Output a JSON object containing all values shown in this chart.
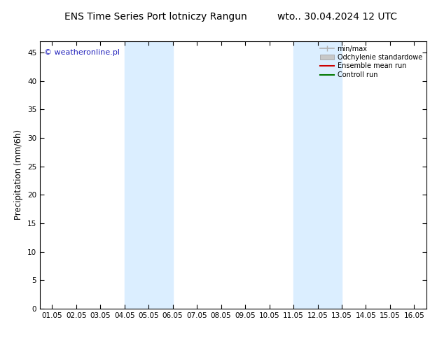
{
  "title": "ENS Time Series Port lotniczy Rangun",
  "title_right": "wto.. 30.04.2024 12 UTC",
  "ylabel": "Precipitation (mm/6h)",
  "watermark": "© weatheronline.pl",
  "x_tick_labels": [
    "01.05",
    "02.05",
    "03.05",
    "04.05",
    "05.05",
    "06.05",
    "07.05",
    "08.05",
    "09.05",
    "10.05",
    "11.05",
    "12.05",
    "13.05",
    "14.05",
    "15.05",
    "16.05"
  ],
  "x_tick_positions": [
    1,
    2,
    3,
    4,
    5,
    6,
    7,
    8,
    9,
    10,
    11,
    12,
    13,
    14,
    15,
    16
  ],
  "xlim": [
    0.5,
    16.5
  ],
  "ylim": [
    0,
    47
  ],
  "yticks": [
    0,
    5,
    10,
    15,
    20,
    25,
    30,
    35,
    40,
    45
  ],
  "shaded_bands": [
    {
      "xmin": 4.0,
      "xmax": 6.0,
      "color": "#dbeeff"
    },
    {
      "xmin": 11.0,
      "xmax": 13.0,
      "color": "#dbeeff"
    }
  ],
  "legend_entries": [
    {
      "label": "min/max",
      "color": "#b0b0b0",
      "type": "line"
    },
    {
      "label": "Odchylenie standardowe",
      "color": "#c8c8c8",
      "type": "fill"
    },
    {
      "label": "Ensemble mean run",
      "color": "#cc0000",
      "type": "line"
    },
    {
      "label": "Controll run",
      "color": "#007700",
      "type": "line"
    }
  ],
  "bg_color": "#ffffff",
  "plot_bg_color": "#ffffff",
  "title_fontsize": 10,
  "tick_fontsize": 7.5,
  "ylabel_fontsize": 8.5,
  "watermark_color": "#2222bb",
  "watermark_fontsize": 8,
  "fig_width": 6.34,
  "fig_height": 4.9,
  "dpi": 100
}
